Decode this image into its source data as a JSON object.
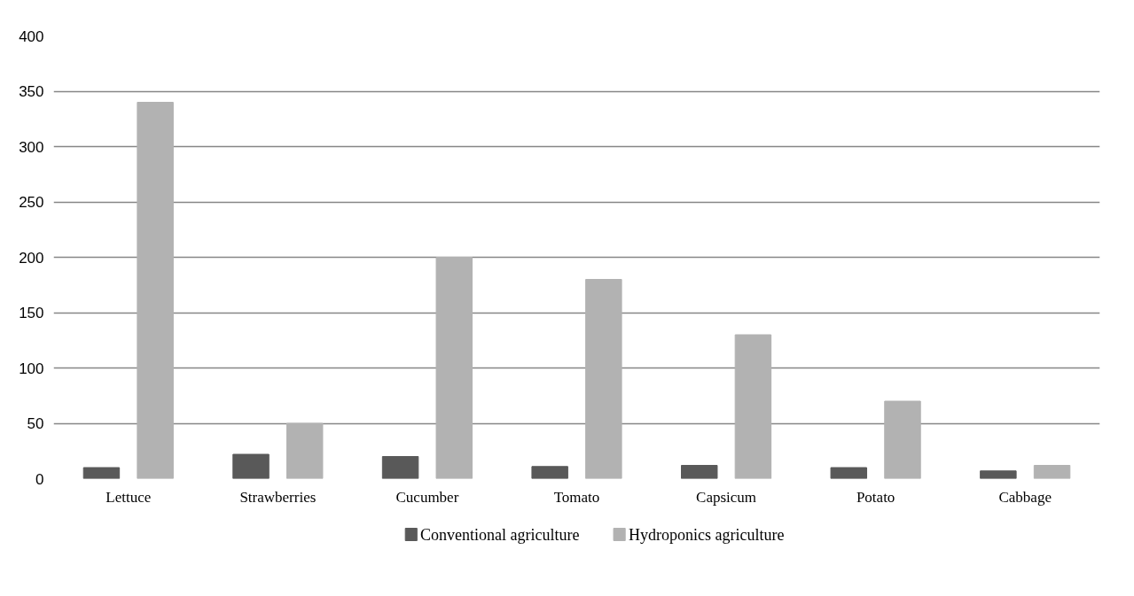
{
  "chart_data": {
    "type": "bar",
    "categories": [
      "Lettuce",
      "Strawberries",
      "Cucumber",
      "Tomato",
      "Capsicum",
      "Potato",
      "Cabbage"
    ],
    "series": [
      {
        "name": "Conventional agriculture",
        "color": "#595959",
        "values": [
          10,
          22,
          20,
          11,
          12,
          10,
          7
        ]
      },
      {
        "name": "Hydroponics agriculture",
        "color": "#b2b2b2",
        "values": [
          340,
          50,
          200,
          180,
          130,
          70,
          12
        ]
      }
    ],
    "ylim": [
      0,
      400
    ],
    "yticks": [
      0,
      50,
      100,
      150,
      200,
      250,
      300,
      350,
      400
    ],
    "grid": "y",
    "legend": "bottom"
  }
}
